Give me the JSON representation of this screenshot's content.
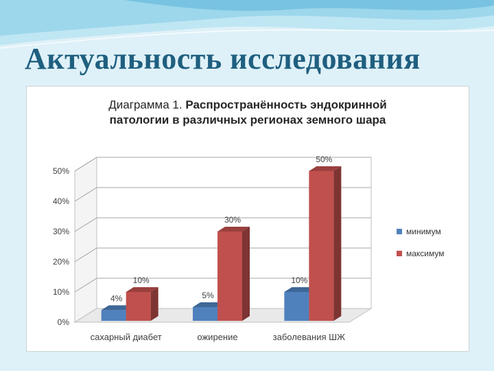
{
  "slide": {
    "title": "Актуальность исследования",
    "colors": {
      "title": "#1f5f80",
      "background": "#dff1f8",
      "wave": "#7cc6e3"
    }
  },
  "chart_data": {
    "type": "bar",
    "title_prefix": "Диаграмма 1.",
    "title_bold": "Распространённость эндокринной",
    "title_line2": "патологии в различных регионах земного шара",
    "categories": [
      "сахарный диабет",
      "ожирение",
      "заболевания ШЖ"
    ],
    "series": [
      {
        "name": "минимум",
        "values": [
          4,
          5,
          10
        ],
        "labels": [
          "4%",
          "5%",
          "10%"
        ],
        "color": "#4f81bd"
      },
      {
        "name": "максимум",
        "values": [
          10,
          30,
          50
        ],
        "labels": [
          "10%",
          "30%",
          "50%"
        ],
        "color": "#c0504d"
      }
    ],
    "yticks": [
      "0%",
      "10%",
      "20%",
      "30%",
      "40%",
      "50%"
    ],
    "ylim": [
      0,
      50
    ],
    "grid": true,
    "legend_position": "right",
    "style": "3d"
  }
}
